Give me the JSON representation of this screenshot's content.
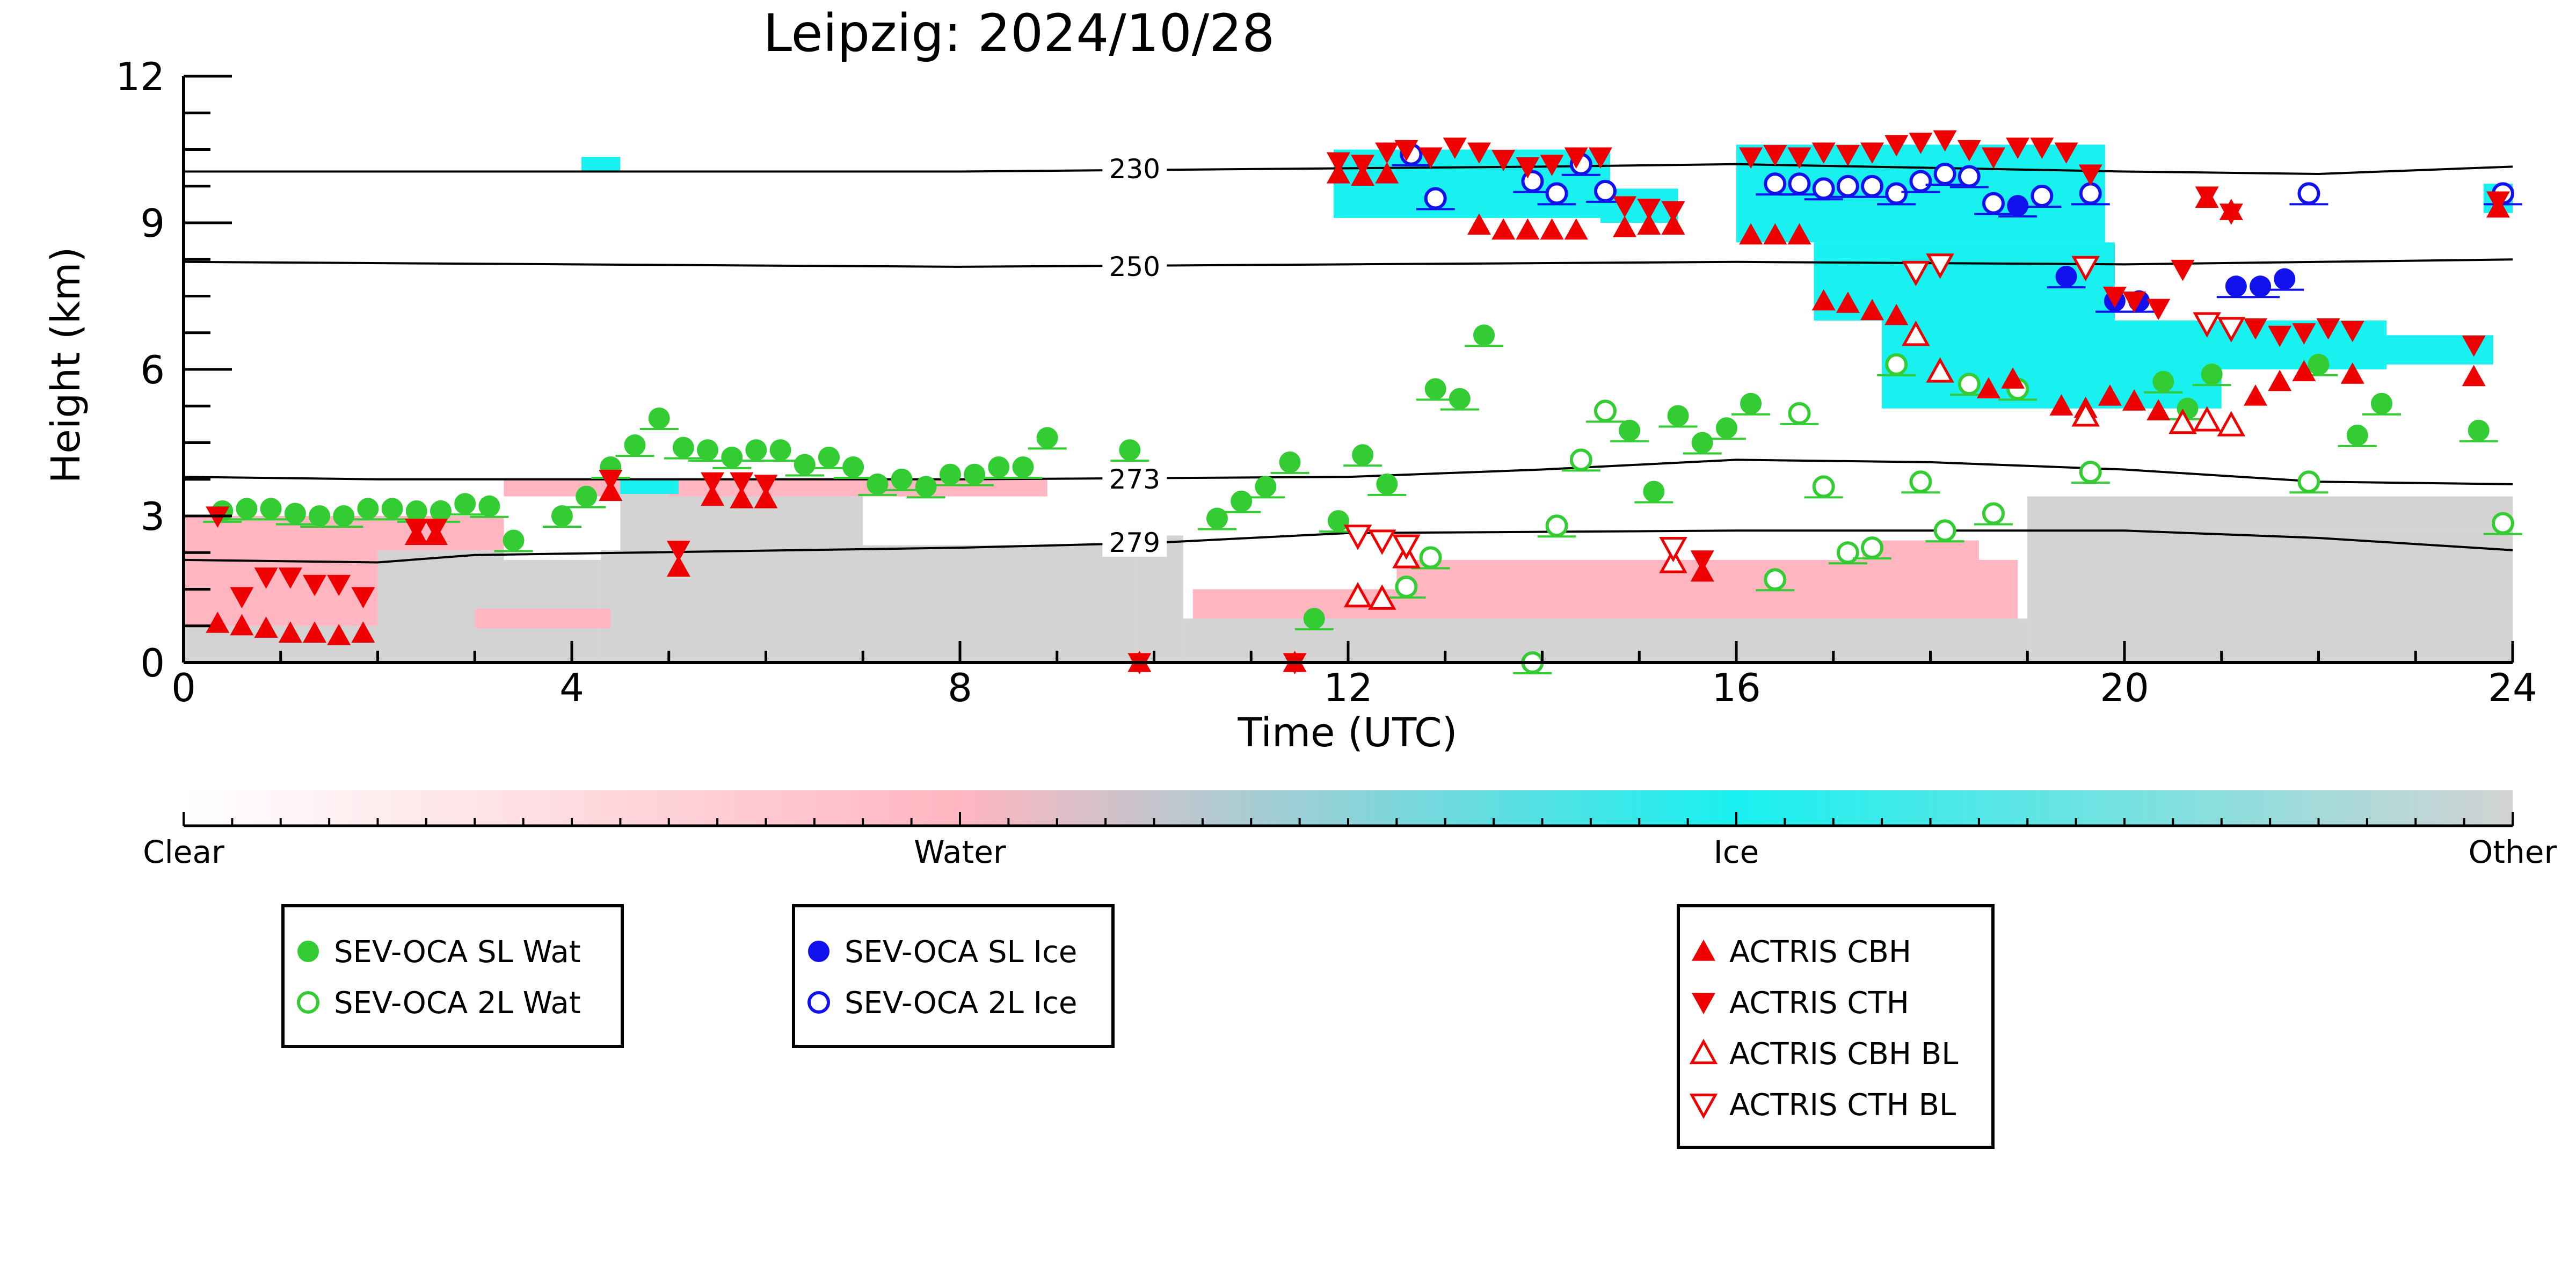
{
  "chart_data": {
    "type": "scatter",
    "title": "Leipzig: 2024/10/28",
    "xlabel": "Time (UTC)",
    "ylabel": "Height (km)",
    "xlim": [
      0,
      24
    ],
    "ylim": [
      0,
      12
    ],
    "xticks": [
      0,
      4,
      8,
      12,
      16,
      20,
      24
    ],
    "yticks": [
      0,
      3,
      6,
      9,
      12
    ],
    "grid": false,
    "background": {
      "description": "cloud classification curtain",
      "classes": [
        "Clear",
        "Water",
        "Ice",
        "Other"
      ],
      "colors": {
        "Water": "#ffb6c1",
        "Ice": "#19f0f0",
        "Other": "#d3d3d3"
      }
    },
    "colorbar": {
      "labels": [
        "Clear",
        "Water",
        "Ice",
        "Other"
      ],
      "stops": [
        "#ffffff",
        "#ffb6c1",
        "#19f0f0",
        "#d3d3d3"
      ]
    },
    "contours": [
      {
        "label": "230",
        "points": [
          [
            0,
            10.05
          ],
          [
            4,
            10.05
          ],
          [
            8,
            10.05
          ],
          [
            11,
            10.1
          ],
          [
            14,
            10.15
          ],
          [
            16,
            10.2
          ],
          [
            20,
            10.05
          ],
          [
            22,
            10.0
          ],
          [
            24,
            10.15
          ]
        ]
      },
      {
        "label": "250",
        "points": [
          [
            0,
            8.2
          ],
          [
            4,
            8.15
          ],
          [
            8,
            8.1
          ],
          [
            12,
            8.15
          ],
          [
            16,
            8.2
          ],
          [
            20,
            8.15
          ],
          [
            22,
            8.2
          ],
          [
            24,
            8.25
          ]
        ]
      },
      {
        "label": "273",
        "points": [
          [
            0,
            3.8
          ],
          [
            2,
            3.75
          ],
          [
            4,
            3.75
          ],
          [
            8,
            3.75
          ],
          [
            12,
            3.8
          ],
          [
            14,
            3.95
          ],
          [
            16,
            4.15
          ],
          [
            18,
            4.1
          ],
          [
            20,
            3.95
          ],
          [
            22,
            3.7
          ],
          [
            24,
            3.65
          ]
        ]
      },
      {
        "label": "279",
        "points": [
          [
            0,
            2.1
          ],
          [
            2,
            2.05
          ],
          [
            3,
            2.2
          ],
          [
            8,
            2.35
          ],
          [
            10,
            2.45
          ],
          [
            12,
            2.65
          ],
          [
            16,
            2.7
          ],
          [
            18,
            2.7
          ],
          [
            20,
            2.7
          ],
          [
            22,
            2.55
          ],
          [
            24,
            2.3
          ]
        ]
      }
    ],
    "series": [
      {
        "name": "SEV-OCA SL Wat",
        "marker": "filled-circle",
        "color": "#33cc33",
        "points": [
          [
            0.4,
            3.1
          ],
          [
            0.65,
            3.15
          ],
          [
            0.9,
            3.15
          ],
          [
            1.15,
            3.05
          ],
          [
            1.4,
            3.0
          ],
          [
            1.65,
            3.0
          ],
          [
            1.9,
            3.15
          ],
          [
            2.15,
            3.15
          ],
          [
            2.4,
            3.1
          ],
          [
            2.65,
            3.1
          ],
          [
            2.9,
            3.25
          ],
          [
            3.15,
            3.2
          ],
          [
            3.4,
            2.5
          ],
          [
            3.9,
            3.0
          ],
          [
            4.15,
            3.4
          ],
          [
            4.4,
            4.0
          ],
          [
            4.65,
            4.45
          ],
          [
            4.9,
            5.0
          ],
          [
            5.15,
            4.4
          ],
          [
            5.4,
            4.35
          ],
          [
            5.65,
            4.2
          ],
          [
            5.9,
            4.35
          ],
          [
            6.15,
            4.35
          ],
          [
            6.4,
            4.05
          ],
          [
            6.65,
            4.2
          ],
          [
            6.9,
            4.0
          ],
          [
            7.15,
            3.65
          ],
          [
            7.4,
            3.75
          ],
          [
            7.65,
            3.6
          ],
          [
            7.9,
            3.85
          ],
          [
            8.15,
            3.85
          ],
          [
            8.4,
            4.0
          ],
          [
            8.65,
            4.0
          ],
          [
            8.9,
            4.6
          ],
          [
            9.75,
            4.35
          ],
          [
            10.65,
            2.95
          ],
          [
            10.9,
            3.3
          ],
          [
            11.15,
            3.6
          ],
          [
            11.4,
            4.1
          ],
          [
            11.65,
            0.9
          ],
          [
            11.9,
            2.9
          ],
          [
            12.15,
            4.25
          ],
          [
            12.4,
            3.65
          ],
          [
            12.9,
            5.6
          ],
          [
            13.15,
            5.4
          ],
          [
            13.4,
            6.7
          ],
          [
            14.9,
            4.75
          ],
          [
            15.15,
            3.5
          ],
          [
            15.4,
            5.05
          ],
          [
            15.65,
            4.5
          ],
          [
            15.9,
            4.8
          ],
          [
            16.15,
            5.3
          ],
          [
            20.4,
            5.75
          ],
          [
            20.65,
            5.2
          ],
          [
            20.9,
            5.9
          ],
          [
            22.0,
            6.1
          ],
          [
            22.4,
            4.65
          ],
          [
            22.65,
            5.3
          ],
          [
            23.65,
            4.75
          ]
        ]
      },
      {
        "name": "SEV-OCA 2L Wat",
        "marker": "open-circle",
        "color": "#33cc33",
        "points": [
          [
            12.6,
            1.55
          ],
          [
            12.85,
            2.15
          ],
          [
            13.9,
            0.0
          ],
          [
            14.15,
            2.8
          ],
          [
            14.4,
            4.15
          ],
          [
            14.65,
            5.15
          ],
          [
            16.4,
            1.7
          ],
          [
            16.65,
            5.1
          ],
          [
            16.9,
            3.6
          ],
          [
            17.15,
            2.25
          ],
          [
            17.4,
            2.35
          ],
          [
            17.65,
            6.1
          ],
          [
            17.9,
            3.7
          ],
          [
            18.15,
            2.7
          ],
          [
            18.4,
            5.7
          ],
          [
            18.65,
            3.05
          ],
          [
            18.9,
            5.6
          ],
          [
            19.65,
            3.9
          ],
          [
            21.9,
            3.7
          ],
          [
            23.9,
            2.85
          ]
        ]
      },
      {
        "name": "SEV-OCA SL Ice",
        "marker": "filled-circle",
        "color": "#1111ee",
        "points": [
          [
            18.9,
            9.35
          ],
          [
            19.4,
            7.9
          ],
          [
            19.9,
            7.4
          ],
          [
            20.15,
            7.4
          ],
          [
            21.15,
            7.7
          ],
          [
            21.4,
            7.7
          ],
          [
            21.65,
            7.85
          ]
        ]
      },
      {
        "name": "SEV-OCA 2L Ice",
        "marker": "open-circle",
        "color": "#1111ee",
        "points": [
          [
            12.65,
            10.4
          ],
          [
            12.9,
            9.5
          ],
          [
            13.9,
            9.85
          ],
          [
            14.15,
            9.6
          ],
          [
            14.4,
            10.2
          ],
          [
            14.65,
            9.65
          ],
          [
            16.4,
            9.8
          ],
          [
            16.65,
            9.8
          ],
          [
            16.9,
            9.7
          ],
          [
            17.15,
            9.75
          ],
          [
            17.4,
            9.75
          ],
          [
            17.65,
            9.6
          ],
          [
            17.9,
            9.85
          ],
          [
            18.15,
            10.0
          ],
          [
            18.4,
            9.95
          ],
          [
            18.65,
            9.4
          ],
          [
            19.15,
            9.55
          ],
          [
            19.65,
            9.6
          ],
          [
            21.9,
            9.6
          ],
          [
            23.9,
            9.6
          ]
        ]
      },
      {
        "name": "ACTRIS CBH",
        "marker": "triangle-up",
        "color": "#ee0000",
        "points": [
          [
            0.35,
            0.8
          ],
          [
            0.6,
            0.75
          ],
          [
            0.85,
            0.7
          ],
          [
            1.1,
            0.6
          ],
          [
            1.35,
            0.6
          ],
          [
            1.6,
            0.55
          ],
          [
            1.85,
            0.6
          ],
          [
            2.4,
            2.6
          ],
          [
            2.6,
            2.6
          ],
          [
            4.4,
            3.5
          ],
          [
            5.1,
            1.95
          ],
          [
            5.45,
            3.4
          ],
          [
            5.75,
            3.35
          ],
          [
            6.0,
            3.35
          ],
          [
            9.85,
            0.0
          ],
          [
            11.45,
            0.0
          ],
          [
            11.9,
            10.0
          ],
          [
            12.15,
            9.95
          ],
          [
            12.4,
            10.0
          ],
          [
            13.35,
            8.95
          ],
          [
            13.6,
            8.85
          ],
          [
            13.85,
            8.85
          ],
          [
            14.1,
            8.85
          ],
          [
            14.35,
            8.85
          ],
          [
            14.85,
            8.9
          ],
          [
            15.1,
            8.95
          ],
          [
            15.35,
            8.95
          ],
          [
            15.65,
            1.85
          ],
          [
            16.15,
            8.75
          ],
          [
            16.4,
            8.75
          ],
          [
            16.65,
            8.75
          ],
          [
            16.9,
            7.4
          ],
          [
            17.15,
            7.35
          ],
          [
            17.4,
            7.2
          ],
          [
            17.65,
            7.1
          ],
          [
            18.6,
            5.6
          ],
          [
            18.85,
            5.8
          ],
          [
            19.35,
            5.25
          ],
          [
            19.6,
            5.2
          ],
          [
            19.85,
            5.45
          ],
          [
            20.1,
            5.35
          ],
          [
            20.35,
            5.15
          ],
          [
            20.6,
            4.9
          ],
          [
            20.85,
            9.5
          ],
          [
            21.1,
            9.25
          ],
          [
            21.35,
            5.45
          ],
          [
            21.6,
            5.75
          ],
          [
            21.85,
            5.95
          ],
          [
            22.35,
            5.9
          ],
          [
            23.6,
            5.85
          ],
          [
            23.85,
            9.3
          ]
        ]
      },
      {
        "name": "ACTRIS CTH",
        "marker": "triangle-down",
        "color": "#ee0000",
        "points": [
          [
            0.35,
            3.0
          ],
          [
            0.6,
            1.35
          ],
          [
            0.85,
            1.75
          ],
          [
            1.1,
            1.75
          ],
          [
            1.35,
            1.6
          ],
          [
            1.6,
            1.6
          ],
          [
            1.85,
            1.35
          ],
          [
            2.4,
            2.75
          ],
          [
            2.6,
            2.75
          ],
          [
            4.4,
            3.75
          ],
          [
            5.1,
            2.3
          ],
          [
            5.45,
            3.7
          ],
          [
            5.75,
            3.7
          ],
          [
            6.0,
            3.65
          ],
          [
            9.85,
            0.0
          ],
          [
            11.45,
            0.0
          ],
          [
            11.9,
            10.25
          ],
          [
            12.15,
            10.2
          ],
          [
            12.4,
            10.45
          ],
          [
            12.6,
            10.5
          ],
          [
            12.85,
            10.35
          ],
          [
            13.1,
            10.55
          ],
          [
            13.35,
            10.45
          ],
          [
            13.6,
            10.3
          ],
          [
            13.85,
            10.15
          ],
          [
            14.1,
            10.2
          ],
          [
            14.35,
            10.35
          ],
          [
            14.6,
            10.35
          ],
          [
            14.85,
            9.35
          ],
          [
            15.1,
            9.3
          ],
          [
            15.35,
            9.25
          ],
          [
            15.65,
            2.1
          ],
          [
            16.15,
            10.35
          ],
          [
            16.4,
            10.4
          ],
          [
            16.65,
            10.35
          ],
          [
            16.9,
            10.45
          ],
          [
            17.15,
            10.4
          ],
          [
            17.4,
            10.45
          ],
          [
            17.65,
            10.6
          ],
          [
            17.9,
            10.65
          ],
          [
            18.15,
            10.7
          ],
          [
            18.4,
            10.5
          ],
          [
            18.65,
            10.35
          ],
          [
            18.9,
            10.55
          ],
          [
            19.15,
            10.55
          ],
          [
            19.4,
            10.45
          ],
          [
            19.65,
            10.0
          ],
          [
            19.9,
            7.5
          ],
          [
            20.1,
            7.4
          ],
          [
            20.35,
            7.25
          ],
          [
            20.6,
            8.05
          ],
          [
            20.85,
            9.55
          ],
          [
            21.1,
            9.2
          ],
          [
            21.35,
            6.85
          ],
          [
            21.6,
            6.7
          ],
          [
            21.85,
            6.75
          ],
          [
            22.1,
            6.85
          ],
          [
            22.35,
            6.8
          ],
          [
            23.6,
            6.5
          ],
          [
            23.85,
            9.45
          ]
        ]
      },
      {
        "name": "ACTRIS CBH BL",
        "marker": "open-triangle-up",
        "color": "#ee0000",
        "points": [
          [
            12.1,
            1.35
          ],
          [
            12.35,
            1.3
          ],
          [
            12.6,
            2.15
          ],
          [
            15.35,
            2.05
          ],
          [
            17.85,
            6.7
          ],
          [
            18.1,
            5.95
          ],
          [
            19.6,
            5.05
          ],
          [
            20.6,
            4.9
          ],
          [
            20.85,
            4.95
          ],
          [
            21.1,
            4.85
          ]
        ]
      },
      {
        "name": "ACTRIS CTH BL",
        "marker": "open-triangle-down",
        "color": "#ee0000",
        "points": [
          [
            12.1,
            2.6
          ],
          [
            12.35,
            2.5
          ],
          [
            12.6,
            2.4
          ],
          [
            15.35,
            2.35
          ],
          [
            17.85,
            8.0
          ],
          [
            18.1,
            8.15
          ],
          [
            19.6,
            8.1
          ],
          [
            20.85,
            6.95
          ],
          [
            21.1,
            6.85
          ]
        ]
      }
    ],
    "legends": [
      [
        "SEV-OCA SL Wat",
        "SEV-OCA 2L Wat"
      ],
      [
        "SEV-OCA SL Ice",
        "SEV-OCA 2L Ice"
      ],
      [
        "ACTRIS CBH",
        "ACTRIS CTH",
        "ACTRIS CBH BL",
        "ACTRIS CTH BL"
      ]
    ]
  }
}
